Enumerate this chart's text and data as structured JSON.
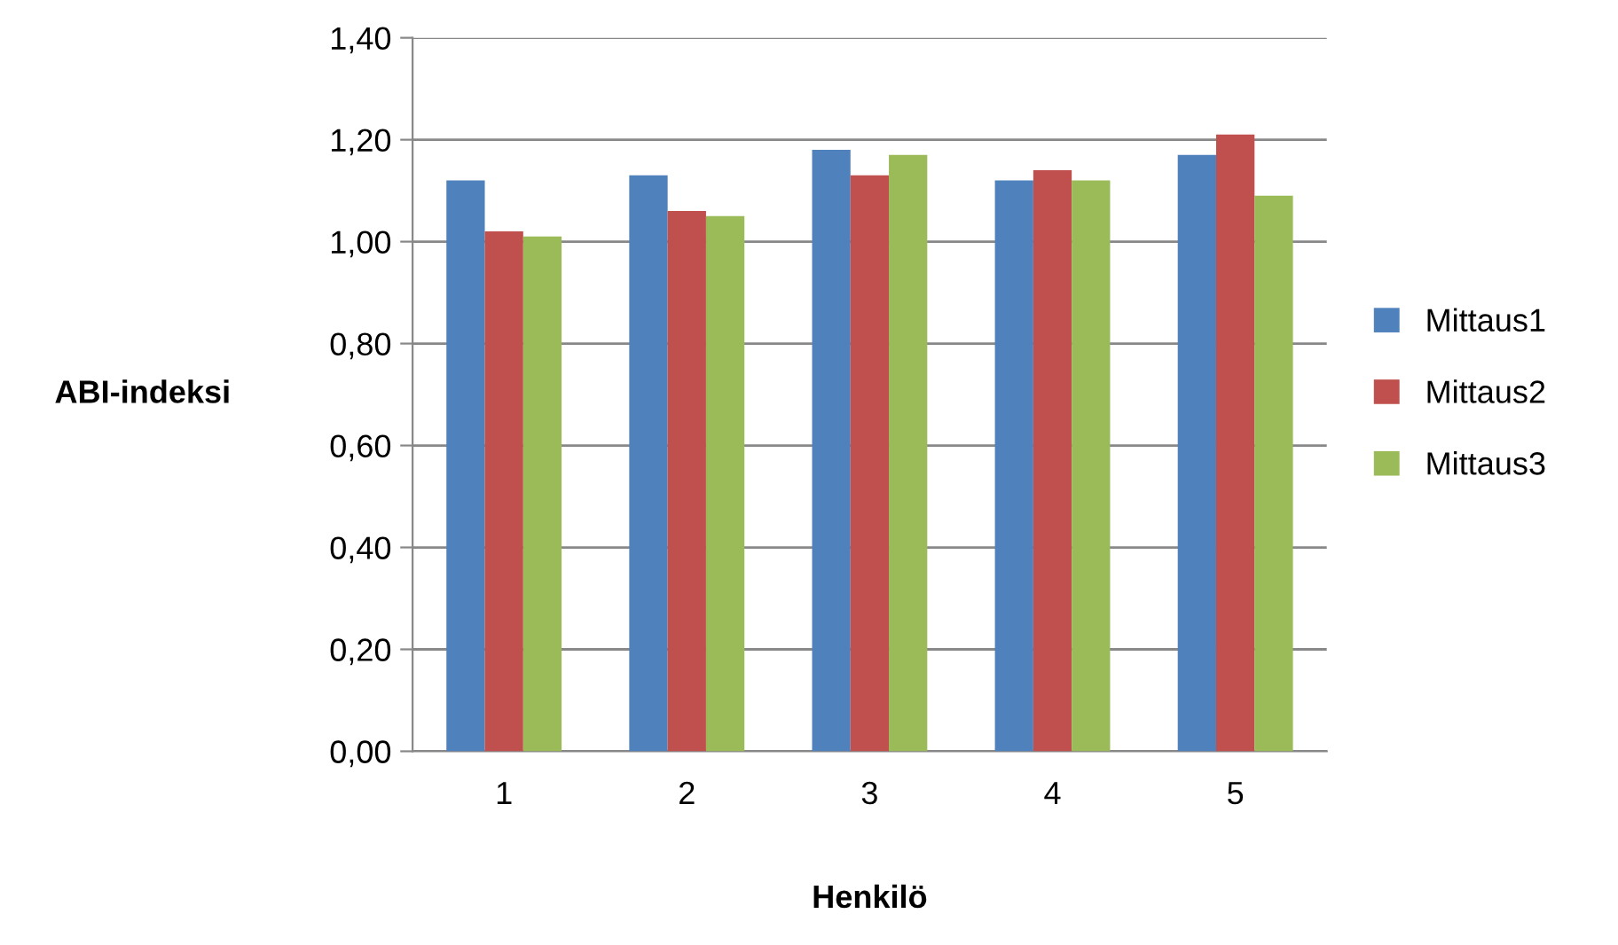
{
  "chart_data": {
    "type": "bar",
    "xlabel": "Henkilö",
    "ylabel": "ABI-indeksi",
    "categories": [
      "1",
      "2",
      "3",
      "4",
      "5"
    ],
    "series": [
      {
        "name": "Mittaus1",
        "color": "#4f81bd",
        "values": [
          1.12,
          1.13,
          1.18,
          1.12,
          1.17
        ]
      },
      {
        "name": "Mittaus2",
        "color": "#c0504d",
        "values": [
          1.02,
          1.06,
          1.13,
          1.14,
          1.21
        ]
      },
      {
        "name": "Mittaus3",
        "color": "#9bbb59",
        "values": [
          1.01,
          1.05,
          1.17,
          1.12,
          1.09
        ]
      }
    ],
    "ylim": [
      0,
      1.4
    ],
    "yticks": [
      {
        "value": 0,
        "label": "0,00"
      },
      {
        "value": 0.2,
        "label": "0,20"
      },
      {
        "value": 0.4,
        "label": "0,40"
      },
      {
        "value": 0.6,
        "label": "0,60"
      },
      {
        "value": 0.8,
        "label": "0,80"
      },
      {
        "value": 1.0,
        "label": "1,00"
      },
      {
        "value": 1.2,
        "label": "1,20"
      },
      {
        "value": 1.4,
        "label": "1,40"
      }
    ],
    "grid": "y",
    "legend": "right"
  }
}
